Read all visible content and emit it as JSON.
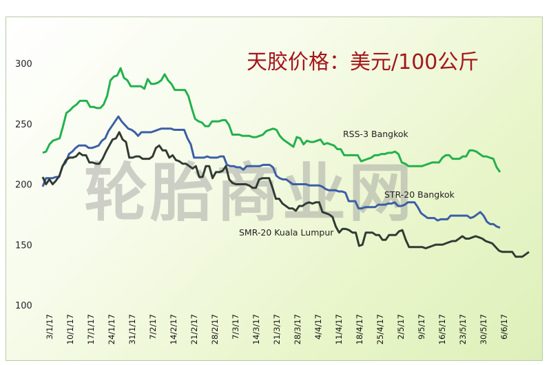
{
  "watermark": "轮胎商业网",
  "chart_data": {
    "type": "line",
    "title": "天胶价格：美元/100公斤",
    "xlabel": "",
    "ylabel": "",
    "ylim": [
      100,
      310
    ],
    "yticks": [
      100,
      150,
      200,
      250,
      300
    ],
    "grid": false,
    "x_tick_labels": [
      "3/1/17",
      "10/1/17",
      "17/1/17",
      "24/1/17",
      "31/1/17",
      "7/2/17",
      "14/2/17",
      "21/2/17",
      "28/2/17",
      "7/3/17",
      "14/3/17",
      "21/3/17",
      "28/3/17",
      "4/4/17",
      "11/4/17",
      "18/4/17",
      "25/4/17",
      "2/5/17",
      "9/5/17",
      "16/5/17",
      "23/5/17",
      "30/5/17",
      "6/6/17"
    ],
    "series": [
      {
        "name": "RSS-3 Bangkok",
        "color": "#22b14c",
        "values": [
          226,
          227,
          233,
          236,
          237,
          238,
          248,
          259,
          261,
          264,
          266,
          269,
          269,
          269,
          264,
          264,
          263,
          263,
          266,
          273,
          286,
          289,
          290,
          296,
          288,
          286,
          281,
          281,
          281,
          281,
          279,
          287,
          283,
          283,
          284,
          286,
          291,
          286,
          283,
          278,
          278,
          278,
          278,
          273,
          263,
          254,
          252,
          251,
          248,
          248,
          252,
          252,
          252,
          253,
          253,
          249,
          241,
          241,
          241,
          240,
          240,
          240,
          239,
          239,
          240,
          241,
          244,
          245,
          246,
          245,
          240,
          237,
          235,
          233,
          231,
          239,
          238,
          233,
          236,
          235,
          235,
          236,
          237,
          233,
          234,
          233,
          232,
          229,
          229,
          224,
          224,
          224,
          224,
          224,
          219,
          220,
          221,
          222,
          224,
          224,
          225,
          225,
          226,
          226,
          227,
          225,
          218,
          217,
          215,
          215,
          215,
          215,
          215,
          216,
          217,
          218,
          218,
          218,
          222,
          224,
          224,
          221,
          221,
          221,
          223,
          223,
          228,
          228,
          227,
          225,
          223,
          223,
          222,
          221,
          214,
          210
        ]
      },
      {
        "name": "STR-20 Bangkok",
        "color": "#3b5ea6",
        "values": [
          198,
          205,
          205,
          205,
          206,
          206,
          215,
          218,
          225,
          227,
          230,
          232,
          232,
          232,
          230,
          230,
          231,
          232,
          236,
          238,
          244,
          248,
          252,
          256,
          252,
          249,
          246,
          245,
          243,
          240,
          243,
          243,
          243,
          243,
          244,
          245,
          246,
          246,
          246,
          246,
          245,
          245,
          245,
          245,
          238,
          233,
          222,
          222,
          222,
          222,
          223,
          222,
          222,
          222,
          223,
          223,
          216,
          215,
          215,
          214,
          214,
          212,
          215,
          215,
          215,
          215,
          215,
          216,
          216,
          216,
          214,
          207,
          205,
          204,
          204,
          202,
          200,
          200,
          200,
          200,
          200,
          199,
          199,
          199,
          199,
          198,
          196,
          195,
          195,
          195,
          194,
          194,
          193,
          186,
          186,
          186,
          180,
          180,
          181,
          181,
          181,
          181,
          183,
          183,
          183,
          184,
          184,
          185,
          182,
          182,
          183,
          185,
          185,
          185,
          181,
          176,
          174,
          172,
          172,
          172,
          170,
          171,
          171,
          171,
          174,
          174,
          174,
          174,
          174,
          174,
          172,
          173,
          175,
          177,
          174,
          169,
          167,
          167,
          165,
          164
        ]
      },
      {
        "name": "SMR-20 Kuala Lumpur",
        "color": "#2f3b33",
        "values": [
          206,
          200,
          204,
          200,
          203,
          207,
          215,
          220,
          222,
          222,
          223,
          226,
          224,
          224,
          218,
          218,
          217,
          217,
          221,
          227,
          232,
          237,
          238,
          243,
          237,
          235,
          222,
          222,
          223,
          223,
          221,
          221,
          221,
          223,
          230,
          232,
          228,
          228,
          222,
          224,
          220,
          219,
          217,
          217,
          215,
          213,
          215,
          206,
          206,
          215,
          215,
          205,
          210,
          210,
          211,
          215,
          204,
          201,
          200,
          200,
          200,
          200,
          199,
          197,
          197,
          204,
          205,
          205,
          205,
          197,
          188,
          188,
          184,
          182,
          180,
          180,
          178,
          182,
          182,
          184,
          185,
          184,
          185,
          185,
          177,
          176,
          175,
          173,
          165,
          160,
          163,
          163,
          162,
          160,
          160,
          149,
          150,
          160,
          160,
          160,
          158,
          158,
          154,
          154,
          158,
          158,
          158,
          161,
          162,
          154,
          148,
          148,
          148,
          148,
          148,
          147,
          148,
          149,
          150,
          150,
          150,
          151,
          152,
          153,
          153,
          155,
          157,
          155,
          155,
          156,
          157,
          156,
          155,
          153,
          152,
          151,
          148,
          145,
          144,
          144,
          144,
          144,
          140,
          140,
          140,
          142,
          144
        ]
      }
    ]
  }
}
